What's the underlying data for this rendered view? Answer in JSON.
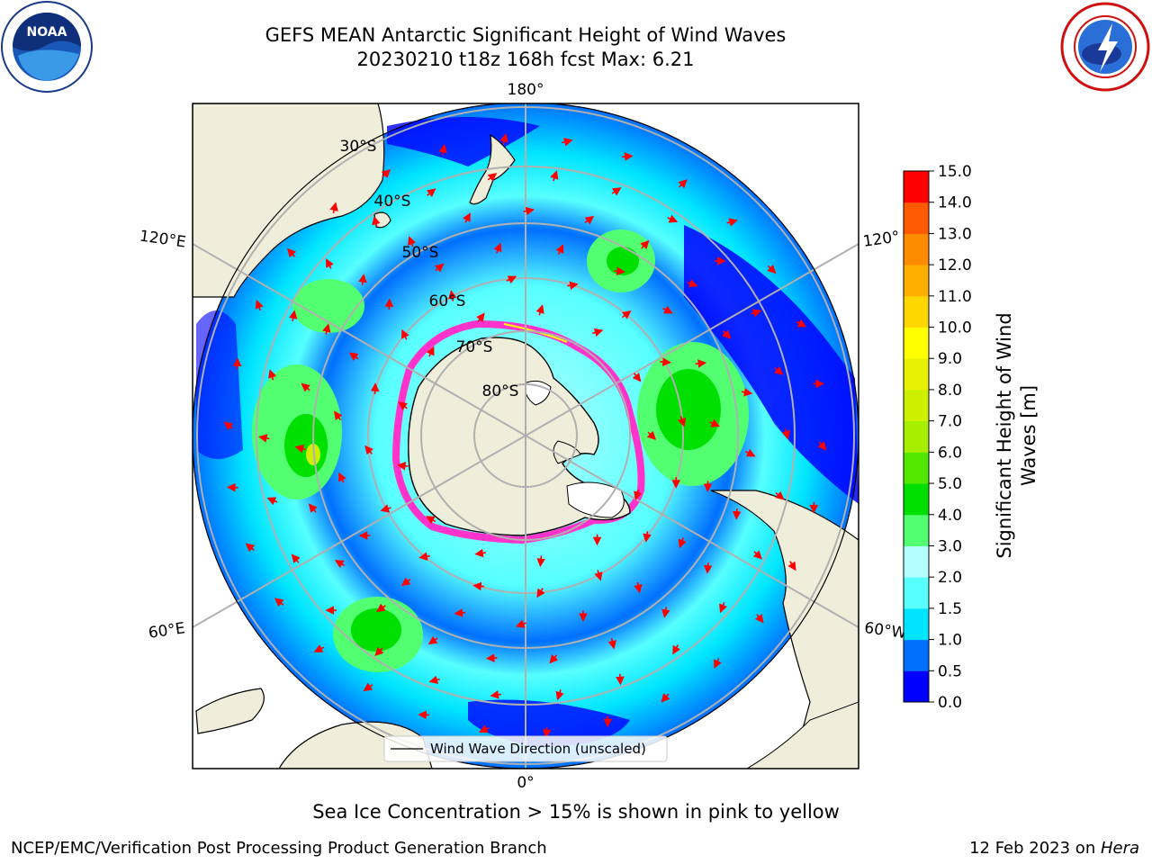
{
  "header": {
    "title_line1": "GEFS MEAN Antarctic Significant Height of Wind Waves",
    "title_line2": "20230210 t18z 168h fcst   Max: 6.21"
  },
  "logos": {
    "left": {
      "icon": "noaa-logo-icon",
      "text": "NOAA"
    },
    "right": {
      "icon": "national-weather-service-logo-icon"
    }
  },
  "map": {
    "projection": "south-polar-stereographic",
    "longitude_labels": [
      "180°",
      "120°E",
      "120°",
      "60°E",
      "60°W",
      "0°"
    ],
    "latitude_labels": [
      "30°S",
      "40°S",
      "50°S",
      "60°S",
      "70°S",
      "80°S"
    ],
    "legend_label": "Wind Wave Direction (unscaled)",
    "colors": {
      "land": "#efeedb",
      "coast": "#000000",
      "grid": "#b0b0b0",
      "arrow": "#ff0000",
      "sea_ice": "#ff33cc"
    }
  },
  "colorbar": {
    "label": "Significant Height of Wind Waves [m]",
    "label_line1": "Significant Height of Wind",
    "label_line2": "Waves [m]",
    "ticks": [
      "0.0",
      "0.5",
      "1.0",
      "1.5",
      "2.0",
      "3.0",
      "4.0",
      "5.0",
      "6.0",
      "7.0",
      "8.0",
      "9.0",
      "10.0",
      "11.0",
      "12.0",
      "13.0",
      "14.0",
      "15.0"
    ],
    "colors": [
      "#0000ff",
      "#0070ff",
      "#00e5ff",
      "#57ffff",
      "#b3ffff",
      "#52ff70",
      "#00e000",
      "#54e800",
      "#a6ef00",
      "#ccf000",
      "#e6f000",
      "#ffff00",
      "#ffd700",
      "#ffaf00",
      "#ff8c00",
      "#ff5a00",
      "#ff0000"
    ]
  },
  "sea_ice_note": "Sea Ice Concentration > 15% is shown in pink to yellow",
  "footer": {
    "left": "NCEP/EMC/Verification Post Processing Product Generation Branch",
    "right_date": "12 Feb 2023 on ",
    "right_host": "Hera"
  }
}
